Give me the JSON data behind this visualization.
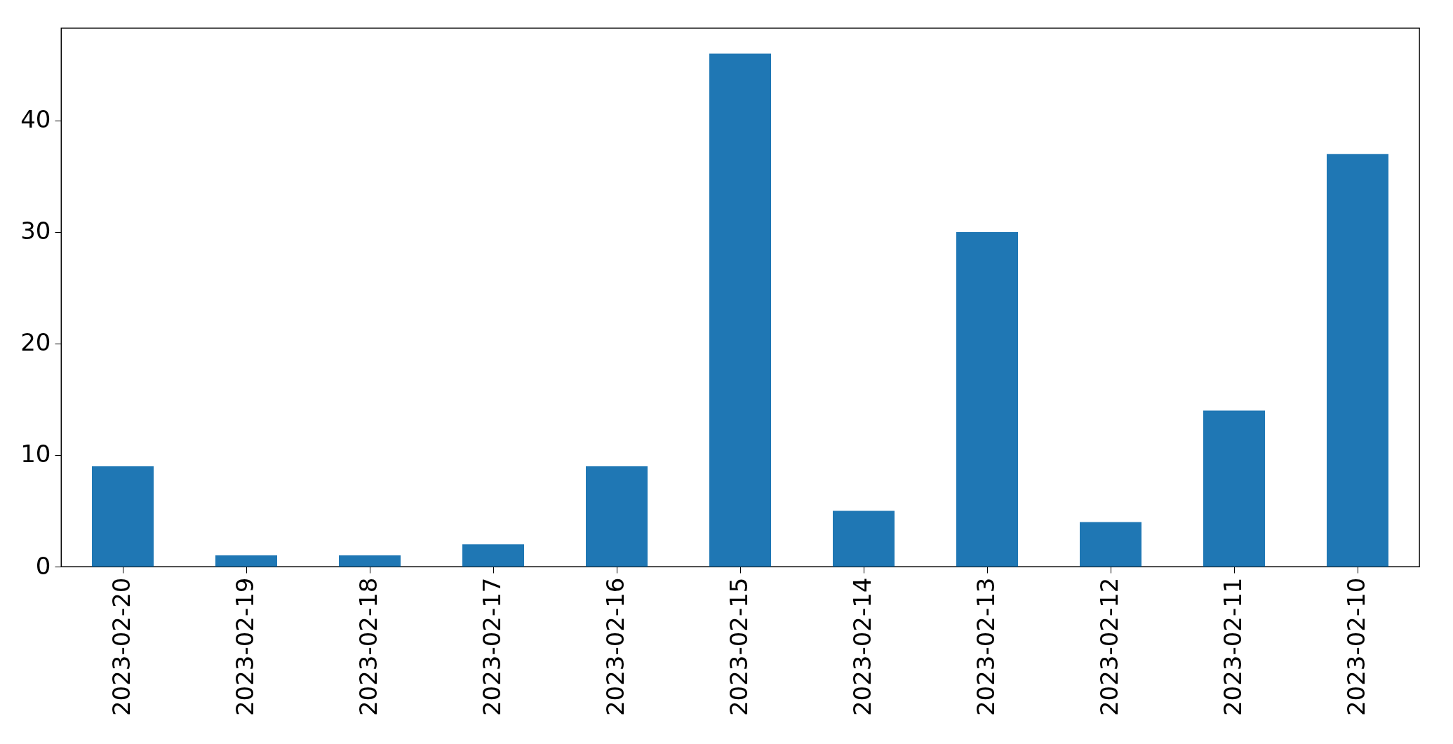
{
  "chart_data": {
    "type": "bar",
    "categories": [
      "2023-02-20",
      "2023-02-19",
      "2023-02-18",
      "2023-02-17",
      "2023-02-16",
      "2023-02-15",
      "2023-02-14",
      "2023-02-13",
      "2023-02-12",
      "2023-02-11",
      "2023-02-10"
    ],
    "values": [
      9,
      1,
      1,
      2,
      9,
      46,
      5,
      30,
      4,
      14,
      37
    ],
    "color": "#1f77b4",
    "ylim": [
      0,
      48.3
    ],
    "yticks": [
      0,
      10,
      20,
      30,
      40
    ]
  }
}
